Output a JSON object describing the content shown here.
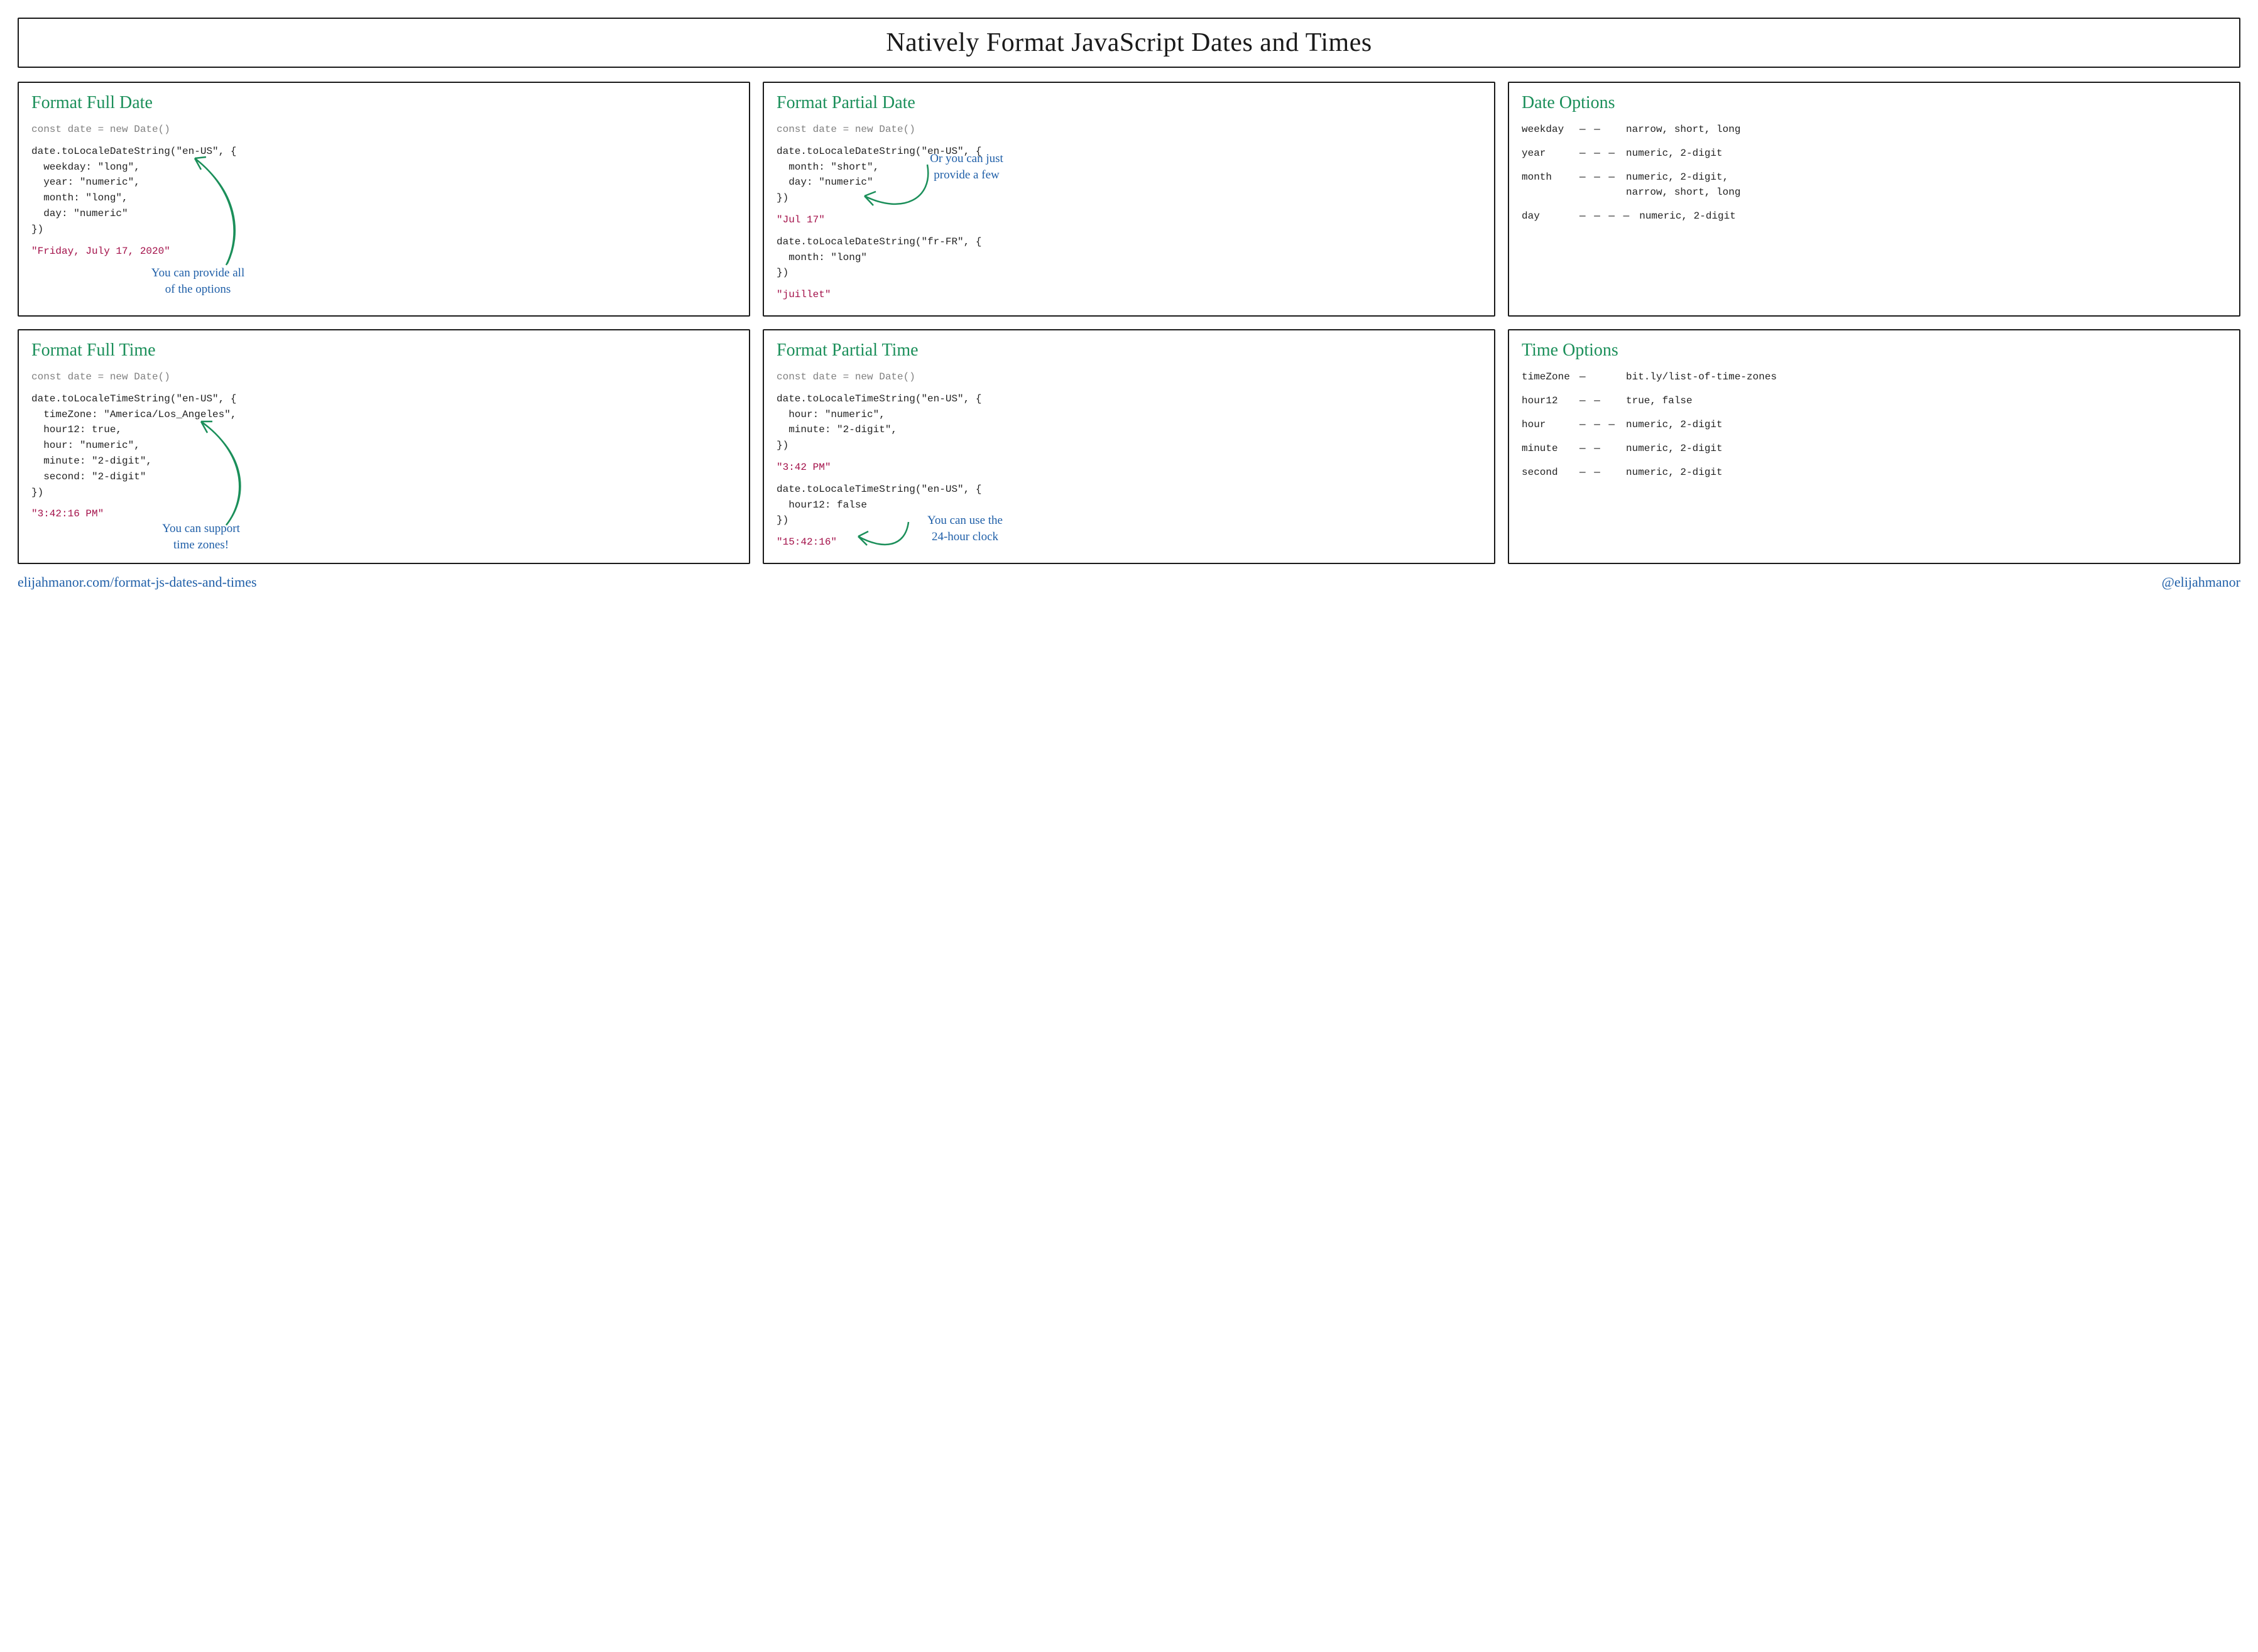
{
  "colors": {
    "heading_green": "#1b8f5a",
    "note_blue": "#1f5fa8",
    "code_gray": "#808080",
    "code_dark": "#222222",
    "result_red": "#a31049",
    "border": "#1a1a1a",
    "arrow_green": "#1b8f5a"
  },
  "title": "Natively Format JavaScript Dates and Times",
  "footer": {
    "url": "elijahmanor.com/format-js-dates-and-times",
    "handle": "@elijahmanor"
  },
  "panels": {
    "full_date": {
      "heading": "Format Full Date",
      "decl": "const date = new Date()",
      "code": "date.toLocaleDateString(\"en-US\", {\n  weekday: \"long\",\n  year: \"numeric\",\n  month: \"long\",\n  day: \"numeric\"\n})",
      "result": "\"Friday, July 17, 2020\"",
      "note": "You can provide all\nof the options"
    },
    "partial_date": {
      "heading": "Format Partial Date",
      "decl": "const date = new Date()",
      "code1": "date.toLocaleDateString(\"en-US\", {\n  month: \"short\",\n  day: \"numeric\"\n})",
      "result1": "\"Jul 17\"",
      "code2": "date.toLocaleDateString(\"fr-FR\", {\n  month: \"long\"\n})",
      "result2": "\"juillet\"",
      "note": "Or you can just\nprovide a few"
    },
    "date_options": {
      "heading": "Date Options",
      "rows": [
        {
          "key": "weekday",
          "dash": "— —",
          "vals": "narrow, short, long"
        },
        {
          "key": "year",
          "dash": "— — —",
          "vals": "numeric, 2-digit"
        },
        {
          "key": "month",
          "dash": "— — —",
          "vals": "numeric, 2-digit,\nnarrow, short, long"
        },
        {
          "key": "day",
          "dash": "— — — —",
          "vals": "numeric, 2-digit"
        }
      ]
    },
    "full_time": {
      "heading": "Format Full Time",
      "decl": "const date = new Date()",
      "code": "date.toLocaleTimeString(\"en-US\", {\n  timeZone: \"America/Los_Angeles\",\n  hour12: true,\n  hour: \"numeric\",\n  minute: \"2-digit\",\n  second: \"2-digit\"\n})",
      "result": "\"3:42:16 PM\"",
      "note": "You can support\ntime zones!"
    },
    "partial_time": {
      "heading": "Format Partial Time",
      "decl": "const date = new Date()",
      "code1": "date.toLocaleTimeString(\"en-US\", {\n  hour: \"numeric\",\n  minute: \"2-digit\",\n})",
      "result1": "\"3:42 PM\"",
      "code2": "date.toLocaleTimeString(\"en-US\", {\n  hour12: false\n})",
      "result2": "\"15:42:16\"",
      "note": "You can use the\n24-hour clock"
    },
    "time_options": {
      "heading": "Time Options",
      "rows": [
        {
          "key": "timeZone",
          "dash": "—",
          "vals": "bit.ly/list-of-time-zones"
        },
        {
          "key": "hour12",
          "dash": "— —",
          "vals": "true, false"
        },
        {
          "key": "hour",
          "dash": "— — —",
          "vals": "numeric, 2-digit"
        },
        {
          "key": "minute",
          "dash": "— —",
          "vals": "numeric, 2-digit"
        },
        {
          "key": "second",
          "dash": "— —",
          "vals": "numeric, 2-digit"
        }
      ]
    }
  }
}
